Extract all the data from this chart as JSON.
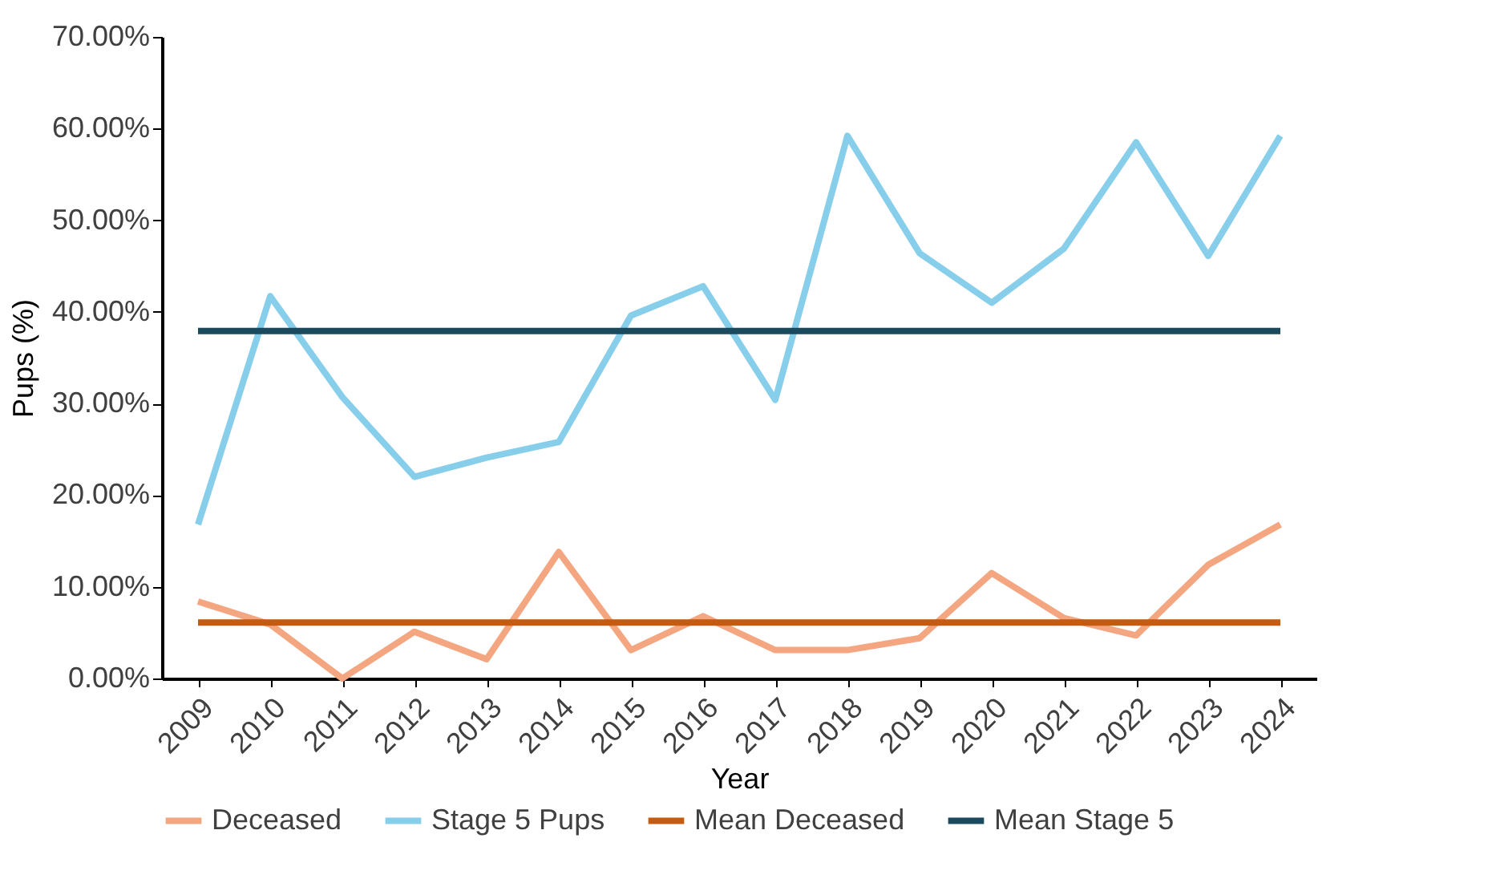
{
  "chart_data": {
    "type": "line",
    "xlabel": "Year",
    "ylabel": "Pups (%)",
    "categories": [
      "2009",
      "2010",
      "2011",
      "2012",
      "2013",
      "2014",
      "2015",
      "2016",
      "2017",
      "2018",
      "2019",
      "2020",
      "2021",
      "2022",
      "2023",
      "2024"
    ],
    "series": [
      {
        "name": "Deceased",
        "color": "#f4a680",
        "values": [
          8.4,
          5.9,
          0,
          5.1,
          2.1,
          13.8,
          3.1,
          6.8,
          3.1,
          3.1,
          4.4,
          11.5,
          6.6,
          4.7,
          12.4,
          16.8
        ]
      },
      {
        "name": "Stage 5 Pups",
        "color": "#87ceeb",
        "values": [
          16.8,
          41.7,
          30.7,
          22.0,
          24.1,
          25.8,
          39.6,
          42.8,
          30.4,
          59.2,
          46.4,
          41.0,
          46.9,
          58.5,
          46.1,
          59.2
        ]
      },
      {
        "name": "Mean Deceased",
        "color": "#c55a11",
        "values": [
          6.1,
          6.1,
          6.1,
          6.1,
          6.1,
          6.1,
          6.1,
          6.1,
          6.1,
          6.1,
          6.1,
          6.1,
          6.1,
          6.1,
          6.1,
          6.1
        ]
      },
      {
        "name": "Mean Stage 5",
        "color": "#1b4a5e",
        "values": [
          37.9,
          37.9,
          37.9,
          37.9,
          37.9,
          37.9,
          37.9,
          37.9,
          37.9,
          37.9,
          37.9,
          37.9,
          37.9,
          37.9,
          37.9,
          37.9
        ]
      }
    ],
    "ylim": [
      0,
      70
    ],
    "yticks": [
      {
        "value": 0,
        "label": "0.00%"
      },
      {
        "value": 10,
        "label": "10.00%"
      },
      {
        "value": 20,
        "label": "20.00%"
      },
      {
        "value": 30,
        "label": "30.00%"
      },
      {
        "value": 40,
        "label": "40.00%"
      },
      {
        "value": 50,
        "label": "50.00%"
      },
      {
        "value": 60,
        "label": "60.00%"
      },
      {
        "value": 70,
        "label": "70.00%"
      }
    ],
    "grid": false,
    "legend": "bottom",
    "marker": "none",
    "line_style": "solid"
  }
}
